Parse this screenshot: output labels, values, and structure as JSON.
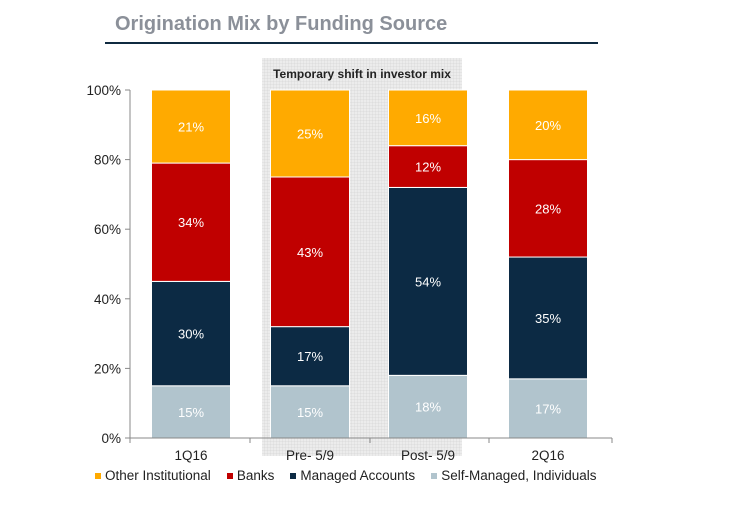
{
  "chart_data": {
    "type": "bar",
    "stacked": true,
    "title": "Origination Mix by Funding Source",
    "annotation": "Temporary shift in investor mix",
    "highlighted_categories": [
      "Pre- 5/9",
      "Post- 5/9"
    ],
    "categories": [
      "1Q16",
      "Pre- 5/9",
      "Post- 5/9",
      "2Q16"
    ],
    "ylim": [
      0,
      100
    ],
    "yticks": [
      "0%",
      "20%",
      "40%",
      "60%",
      "80%",
      "100%"
    ],
    "legend_position": "bottom",
    "series": [
      {
        "name": "Self-Managed, Individuals",
        "color": "#B1C4CD",
        "values": [
          15,
          15,
          18,
          17
        ]
      },
      {
        "name": "Managed Accounts",
        "color": "#0C2A44",
        "values": [
          30,
          17,
          54,
          35
        ]
      },
      {
        "name": "Banks",
        "color": "#C00000",
        "values": [
          34,
          43,
          12,
          28
        ]
      },
      {
        "name": "Other Institutional",
        "color": "#FFAA00",
        "values": [
          21,
          25,
          16,
          20
        ]
      }
    ],
    "legend_order": [
      "Other Institutional",
      "Banks",
      "Managed Accounts",
      "Self-Managed, Individuals"
    ]
  }
}
